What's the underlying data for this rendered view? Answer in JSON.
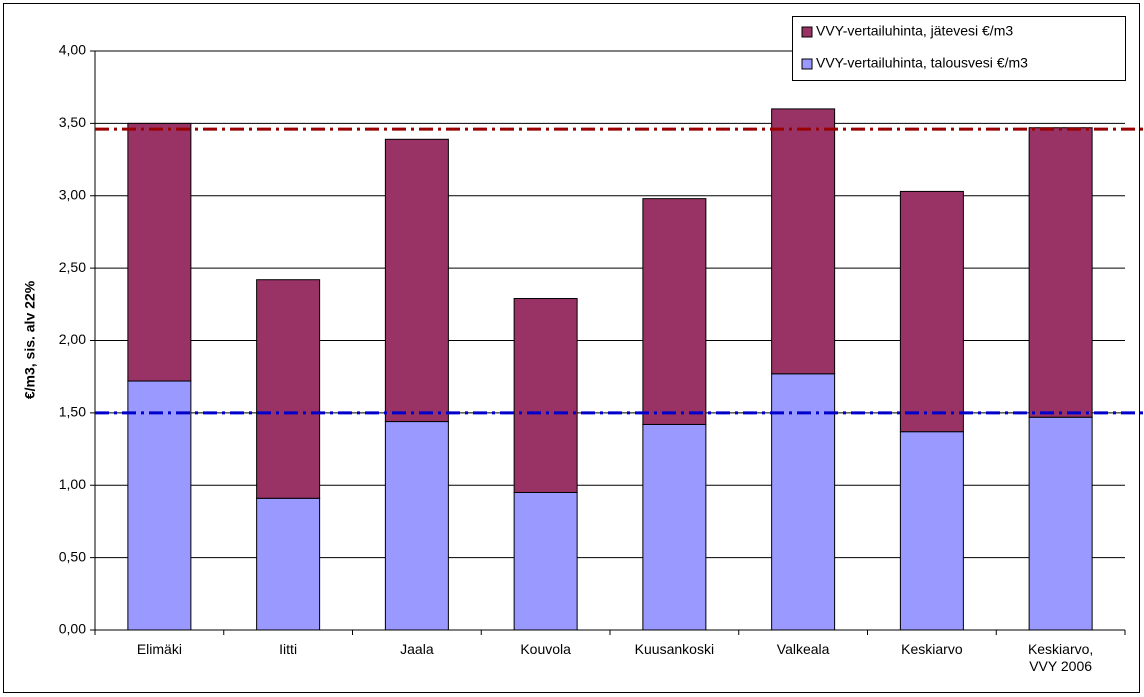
{
  "chart_data": {
    "type": "stacked_bar",
    "y_label": "€/m3, sis. alv 22%",
    "categories": [
      "Elimäki",
      "Iitti",
      "Jaala",
      "Kouvola",
      "Kuusankoski",
      "Valkeala",
      "Keskiarvo",
      "Keskiarvo, VVY 2006"
    ],
    "series": [
      {
        "name": "VVY-vertailuhinta, talousvesi €/m3",
        "color": "#9999ff",
        "values": [
          1.72,
          0.91,
          1.44,
          0.95,
          1.42,
          1.77,
          1.37,
          1.47
        ]
      },
      {
        "name": "VVY-vertailuhinta, jätevesi €/m3",
        "color": "#993366",
        "values": [
          1.78,
          1.51,
          1.95,
          1.34,
          1.56,
          1.83,
          1.66,
          2.0
        ]
      }
    ],
    "reference_lines": [
      {
        "value": 3.46,
        "color": "#990000"
      },
      {
        "value": 1.5,
        "color": "#0000cc"
      }
    ],
    "ylim": [
      0,
      4
    ],
    "yticks": [
      {
        "value": 0,
        "label": "0,00"
      },
      {
        "value": 0.5,
        "label": "0,50"
      },
      {
        "value": 1,
        "label": "1,00"
      },
      {
        "value": 1.5,
        "label": "1,50"
      },
      {
        "value": 2,
        "label": "2,00"
      },
      {
        "value": 2.5,
        "label": "2,50"
      },
      {
        "value": 3,
        "label": "3,00"
      },
      {
        "value": 3.5,
        "label": "3,50"
      },
      {
        "value": 4,
        "label": "4,00"
      }
    ],
    "grid": true,
    "legend": "top-right"
  }
}
